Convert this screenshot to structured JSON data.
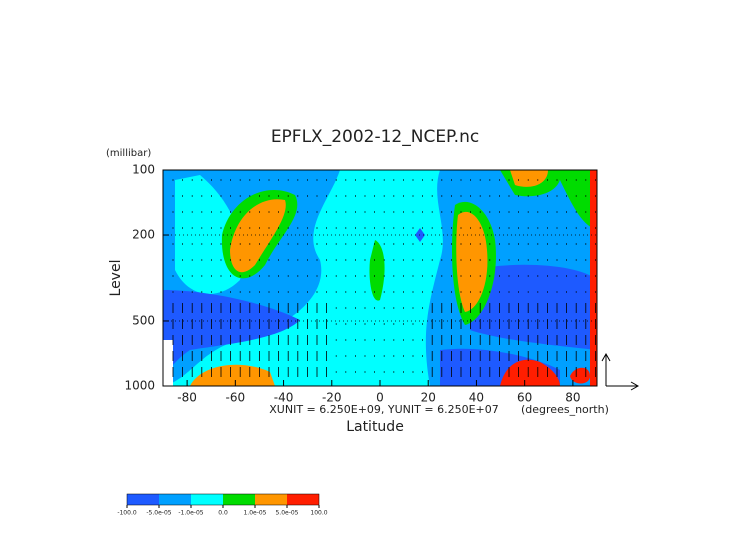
{
  "chart_data": {
    "type": "contour",
    "title": "EPFLX_2002-12_NCEP.nc",
    "y_unit": "(millibar)",
    "ylabel": "Level",
    "xlabel": "Latitude",
    "x_unit": "(degrees_north)",
    "vector_note": "XUNIT = 6.250E+09, YUNIT = 6.250E+07",
    "xlim": [
      -90,
      90
    ],
    "xticks": [
      -80,
      -60,
      -40,
      -20,
      0,
      20,
      40,
      60,
      80
    ],
    "ylim": [
      1000,
      100
    ],
    "yticks": [
      100,
      200,
      500,
      1000
    ],
    "log_y": true,
    "grid": true,
    "levels": [
      {
        "value": -100,
        "label": "-100.0"
      },
      {
        "value": -5e-05,
        "label": "-5.0e-05"
      },
      {
        "value": -1e-05,
        "label": "-1.0e-05"
      },
      {
        "value": 0,
        "label": "0.0"
      },
      {
        "value": 1e-05,
        "label": "1.0e-05"
      },
      {
        "value": 5e-05,
        "label": "5.0e-05"
      },
      {
        "value": 100,
        "label": "100.0"
      }
    ],
    "colors": [
      "#1e5aff",
      "#00a0ff",
      "#00ffff",
      "#00dc00",
      "#ff9600",
      "#ff1e00"
    ]
  }
}
